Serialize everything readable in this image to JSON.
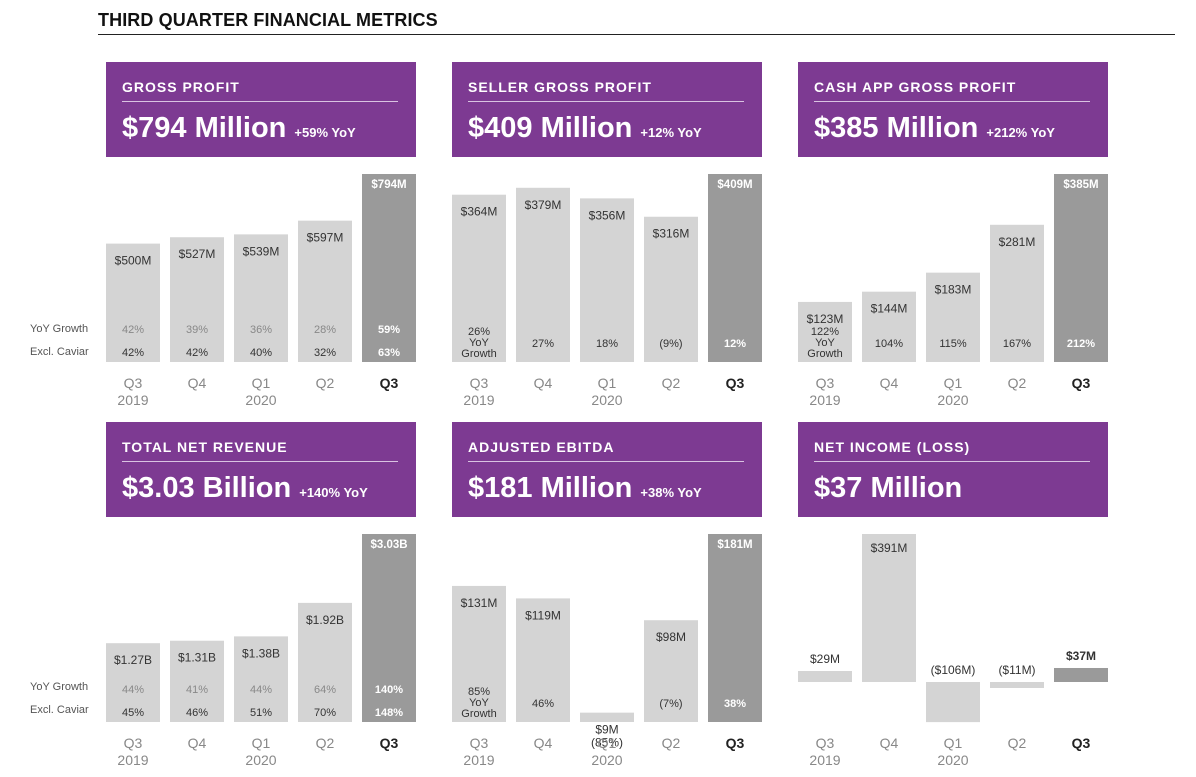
{
  "page": {
    "title": "THIRD QUARTER FINANCIAL METRICS"
  },
  "row_labels": {
    "growth": "YoY Growth",
    "caviar": "Excl. Caviar"
  },
  "colors": {
    "header_purple": "#7d3a92",
    "bar_light": "#d4d4d4",
    "bar_dark": "#9a9a9a",
    "text_dark": "#333333",
    "text_muted": "#888888"
  },
  "chart_data": [
    {
      "type": "bar",
      "header": {
        "label": "GROSS PROFIT",
        "value": "$794 Million",
        "yoy": "+59% YoY"
      },
      "categories": [
        "Q3 2019",
        "Q4",
        "Q1 2020",
        "Q2",
        "Q3"
      ],
      "values": [
        500,
        527,
        539,
        597,
        794
      ],
      "unit": "$M",
      "value_labels": [
        "$500M",
        "$527M",
        "$539M",
        "$597M",
        "$794M"
      ],
      "growth_labels": [
        "42%",
        "39%",
        "36%",
        "28%",
        "59%"
      ],
      "caviar_labels": [
        "42%",
        "42%",
        "40%",
        "32%",
        "63%"
      ],
      "ylim": [
        0,
        794
      ]
    },
    {
      "type": "bar",
      "header": {
        "label": "SELLER GROSS PROFIT",
        "value": "$409 Million",
        "yoy": "+12% YoY"
      },
      "categories": [
        "Q3 2019",
        "Q4",
        "Q1 2020",
        "Q2",
        "Q3"
      ],
      "values": [
        364,
        379,
        356,
        316,
        409
      ],
      "unit": "$M",
      "value_labels": [
        "$364M",
        "$379M",
        "$356M",
        "$316M",
        "$409M"
      ],
      "growth_labels": [
        "26%\nYoY\nGrowth",
        "27%",
        "18%",
        "(9%)",
        "12%"
      ],
      "ylim": [
        0,
        409
      ]
    },
    {
      "type": "bar",
      "header": {
        "label": "CASH APP GROSS PROFIT",
        "value": "$385 Million",
        "yoy": "+212% YoY"
      },
      "categories": [
        "Q3 2019",
        "Q4",
        "Q1 2020",
        "Q2",
        "Q3"
      ],
      "values": [
        123,
        144,
        183,
        281,
        385
      ],
      "unit": "$M",
      "value_labels": [
        "$123M",
        "$144M",
        "$183M",
        "$281M",
        "$385M"
      ],
      "growth_labels": [
        "122%\nYoY\nGrowth",
        "104%",
        "115%",
        "167%",
        "212%"
      ],
      "ylim": [
        0,
        385
      ]
    },
    {
      "type": "bar",
      "header": {
        "label": "TOTAL NET REVENUE",
        "value": "$3.03 Billion",
        "yoy": "+140% YoY"
      },
      "categories": [
        "Q3 2019",
        "Q4",
        "Q1 2020",
        "Q2",
        "Q3"
      ],
      "values": [
        1.27,
        1.31,
        1.38,
        1.92,
        3.03
      ],
      "unit": "$B",
      "value_labels": [
        "$1.27B",
        "$1.31B",
        "$1.38B",
        "$1.92B",
        "$3.03B"
      ],
      "growth_labels": [
        "44%",
        "41%",
        "44%",
        "64%",
        "140%"
      ],
      "caviar_labels": [
        "45%",
        "46%",
        "51%",
        "70%",
        "148%"
      ],
      "ylim": [
        0,
        3.03
      ]
    },
    {
      "type": "bar",
      "header": {
        "label": "ADJUSTED EBITDA",
        "value": "$181 Million",
        "yoy": "+38% YoY"
      },
      "categories": [
        "Q3 2019",
        "Q4",
        "Q1 2020",
        "Q2",
        "Q3"
      ],
      "values": [
        131,
        119,
        9,
        98,
        181
      ],
      "unit": "$M",
      "value_labels": [
        "$131M",
        "$119M",
        "$9M\n(85%)",
        "$98M",
        "$181M"
      ],
      "growth_labels": [
        "85%\nYoY\nGrowth",
        "46%",
        "",
        "(7%)",
        "38%"
      ],
      "ylim": [
        0,
        181
      ]
    },
    {
      "type": "bar",
      "header": {
        "label": "NET INCOME (LOSS)",
        "value": "$37 Million",
        "yoy": ""
      },
      "categories": [
        "Q3 2019",
        "Q4",
        "Q1 2020",
        "Q2",
        "Q3"
      ],
      "values": [
        29,
        391,
        -106,
        -11,
        37
      ],
      "unit": "$M",
      "value_labels": [
        "$29M",
        "$391M",
        "($106M)",
        "($11M)",
        "$37M"
      ],
      "ylim": [
        -106,
        391
      ]
    }
  ]
}
